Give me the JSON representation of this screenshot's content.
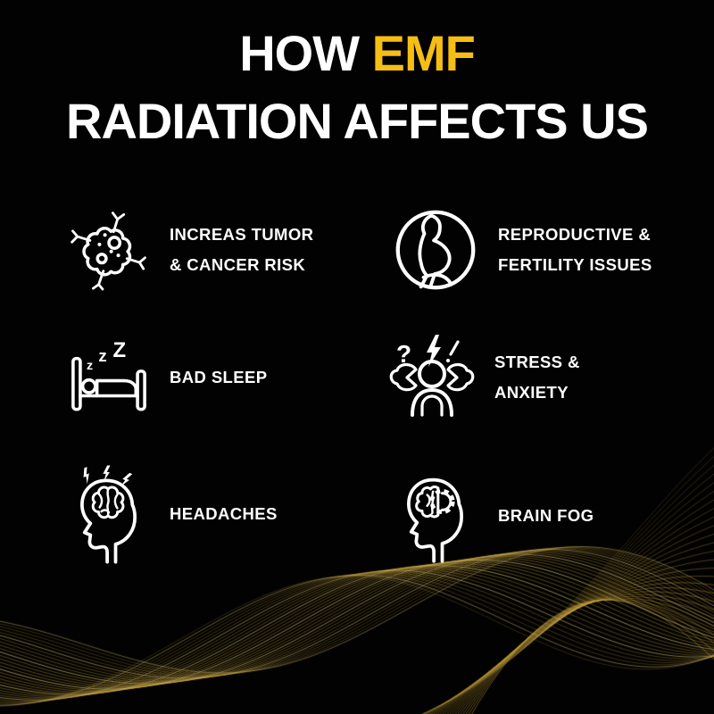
{
  "title": {
    "word_how": "HOW",
    "word_emf": "EMF",
    "line2": "RADIATION AFFECTS US"
  },
  "colors": {
    "background": "#020202",
    "accent_yellow": "#F6BE14",
    "wave_gold": "#CFA83C",
    "wave_gold_bright": "#E9D27A",
    "icon_stroke": "#FFFFFF",
    "text": "#FFFFFF"
  },
  "effects": [
    {
      "icon": "cancer-cell-icon",
      "label_lines": [
        "INCREAS TUMOR",
        "& CANCER RISK"
      ]
    },
    {
      "icon": "pregnant-woman-icon",
      "label_lines": [
        "REPRODUCTIVE &",
        "FERTILITY ISSUES"
      ]
    },
    {
      "icon": "sleeping-bed-icon",
      "label_lines": [
        "BAD SLEEP",
        ""
      ]
    },
    {
      "icon": "stressed-person-icon",
      "label_lines": [
        "STRESS &",
        "ANXIETY"
      ]
    },
    {
      "icon": "headache-head-icon",
      "label_lines": [
        "HEADACHES",
        ""
      ]
    },
    {
      "icon": "brain-fog-head-icon",
      "label_lines": [
        "BRAIN FOG",
        ""
      ]
    }
  ],
  "sleep_zzz": [
    "z",
    "z",
    "Z"
  ]
}
